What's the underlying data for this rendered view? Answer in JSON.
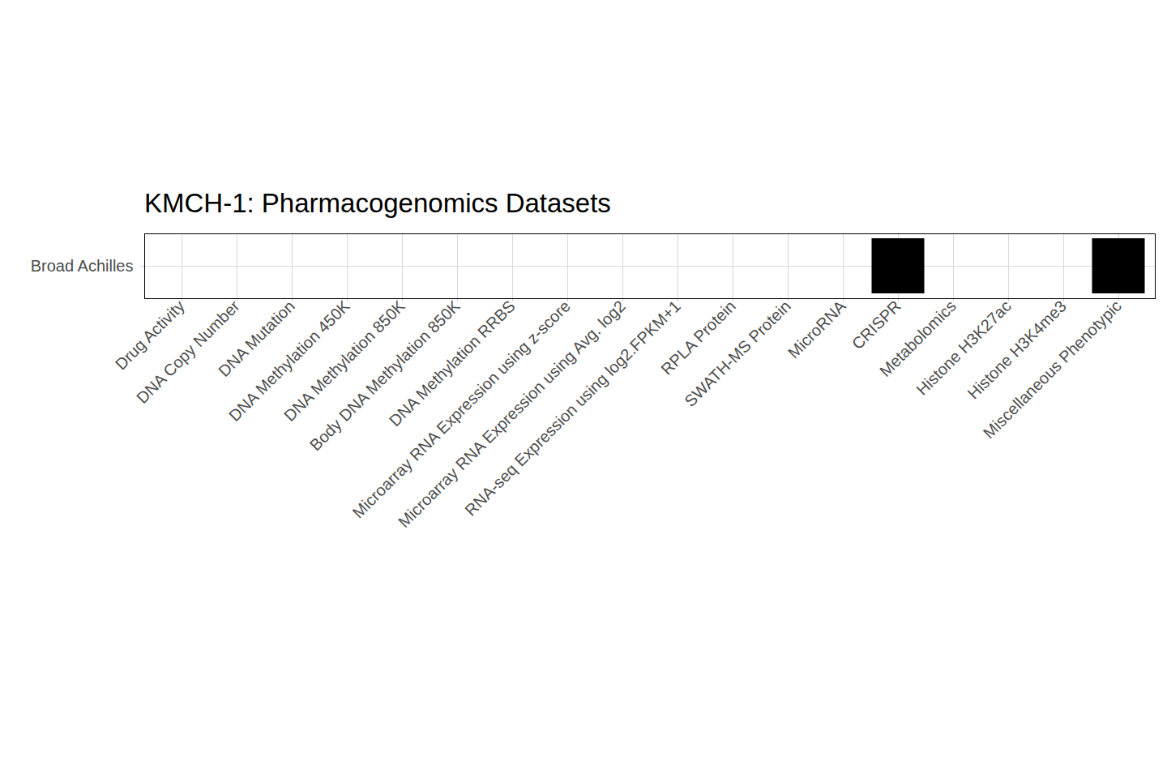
{
  "chart_data": {
    "type": "tile",
    "title": "KMCH-1: Pharmacogenomics Datasets",
    "categories": [
      "Drug Activity",
      "DNA Copy Number",
      "DNA Mutation",
      "DNA Methylation 450K",
      "DNA Methylation 850K",
      "Body DNA Methylation 850K",
      "DNA Methylation RRBS",
      "Microarray RNA Expression using z-score",
      "Microarray RNA Expression using Avg. log2",
      "RNA-seq Expression using log2.FPKM+1",
      "RPLA Protein",
      "SWATH-MS Protein",
      "MicroRNA",
      "CRISPR",
      "Metabolomics",
      "Histone H3K27ac",
      "Histone H3K4me3",
      "Miscellaneous Phenotypic"
    ],
    "rows": [
      "Broad Achilles"
    ],
    "cells": [
      [
        0,
        0,
        0,
        0,
        0,
        0,
        0,
        0,
        0,
        0,
        0,
        0,
        0,
        1,
        0,
        0,
        0,
        1
      ]
    ],
    "color": "#000000",
    "grid": true
  }
}
